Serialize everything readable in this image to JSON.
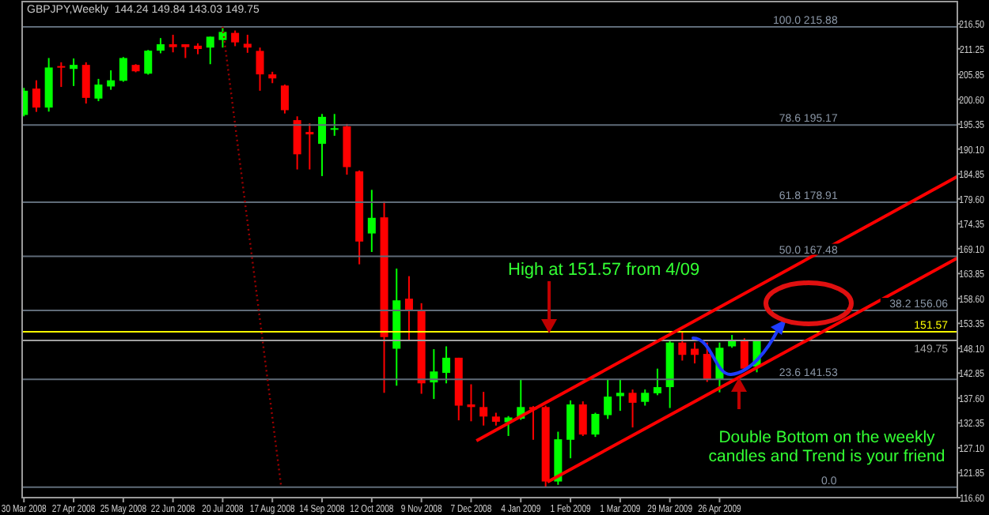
{
  "chart_data": {
    "type": "candlestick",
    "title": "GBPJPY,Weekly  144.24 149.84 143.03 149.75",
    "x": [
      "2008-03-30",
      "2008-04-06",
      "2008-04-13",
      "2008-04-20",
      "2008-04-27",
      "2008-05-04",
      "2008-05-11",
      "2008-05-18",
      "2008-05-25",
      "2008-06-01",
      "2008-06-08",
      "2008-06-15",
      "2008-06-22",
      "2008-06-29",
      "2008-07-06",
      "2008-07-13",
      "2008-07-20",
      "2008-07-27",
      "2008-08-03",
      "2008-08-10",
      "2008-08-17",
      "2008-08-24",
      "2008-08-31",
      "2008-09-07",
      "2008-09-14",
      "2008-09-21",
      "2008-09-28",
      "2008-10-05",
      "2008-10-12",
      "2008-10-19",
      "2008-10-26",
      "2008-11-02",
      "2008-11-09",
      "2008-11-16",
      "2008-11-23",
      "2008-11-30",
      "2008-12-07",
      "2008-12-14",
      "2008-12-21",
      "2008-12-28",
      "2009-01-04",
      "2009-01-11",
      "2009-01-18",
      "2009-01-25",
      "2009-02-01",
      "2009-02-08",
      "2009-02-15",
      "2009-02-22",
      "2009-03-01",
      "2009-03-08",
      "2009-03-15",
      "2009-03-22",
      "2009-03-29",
      "2009-04-05",
      "2009-04-12",
      "2009-04-19",
      "2009-04-26",
      "2009-05-03",
      "2009-05-10",
      "2009-05-17"
    ],
    "ohlc": [
      [
        197.3,
        203.0,
        197.0,
        202.4
      ],
      [
        202.85,
        204.6,
        197.95,
        198.85
      ],
      [
        198.85,
        209.3,
        198.0,
        207.3
      ],
      [
        207.6,
        208.4,
        203.2,
        207.3
      ],
      [
        207.0,
        209.2,
        203.4,
        207.85
      ],
      [
        207.85,
        208.4,
        199.7,
        200.9
      ],
      [
        200.75,
        204.9,
        200.2,
        203.7
      ],
      [
        203.3,
        206.7,
        202.6,
        204.6
      ],
      [
        204.5,
        209.5,
        204.3,
        209.3
      ],
      [
        207.85,
        208.0,
        206.3,
        206.5
      ],
      [
        206.0,
        211.0,
        205.8,
        210.85
      ],
      [
        210.85,
        213.5,
        210.3,
        212.2
      ],
      [
        212.2,
        214.2,
        210.5,
        211.6
      ],
      [
        212.2,
        212.2,
        209.3,
        211.6
      ],
      [
        211.9,
        212.4,
        210.1,
        211.2
      ],
      [
        211.5,
        213.8,
        208.0,
        213.8
      ],
      [
        213.1,
        215.88,
        211.5,
        214.8
      ],
      [
        214.6,
        215.1,
        211.8,
        212.6
      ],
      [
        212.3,
        214.2,
        210.4,
        211.5
      ],
      [
        210.8,
        211.5,
        202.4,
        205.85
      ],
      [
        205.85,
        206.4,
        204.0,
        205.0
      ],
      [
        203.5,
        203.7,
        197.6,
        198.3
      ],
      [
        196.2,
        197.0,
        185.8,
        189.0
      ],
      [
        193.7,
        195.5,
        185.8,
        193.2
      ],
      [
        191.2,
        197.5,
        184.4,
        196.9
      ],
      [
        194.2,
        197.5,
        192.9,
        194.5
      ],
      [
        194.9,
        195.4,
        184.7,
        186.3
      ],
      [
        185.4,
        185.6,
        165.8,
        170.6
      ],
      [
        172.3,
        181.5,
        168.4,
        175.6
      ],
      [
        175.7,
        179.1,
        138.7,
        150.45
      ],
      [
        148.0,
        164.9,
        140.2,
        158.2
      ],
      [
        158.55,
        163.3,
        149.9,
        156.0
      ],
      [
        156.2,
        157.6,
        138.5,
        140.7
      ],
      [
        140.9,
        147.9,
        137.4,
        143.2
      ],
      [
        142.9,
        148.5,
        140.7,
        146.1
      ],
      [
        146.1,
        146.1,
        132.9,
        136.0
      ],
      [
        136.25,
        140.5,
        132.7,
        135.7
      ],
      [
        135.7,
        138.9,
        131.8,
        133.7
      ],
      [
        133.7,
        134.5,
        131.8,
        132.6
      ],
      [
        132.5,
        133.8,
        129.6,
        133.5
      ],
      [
        133.25,
        141.6,
        133.0,
        135.7
      ],
      [
        135.7,
        135.9,
        128.8,
        135.2
      ],
      [
        135.7,
        136.0,
        118.8,
        120.0
      ],
      [
        120.0,
        130.5,
        119.3,
        128.9
      ],
      [
        128.8,
        137.1,
        124.9,
        136.25
      ],
      [
        136.25,
        136.9,
        129.6,
        129.9
      ],
      [
        129.9,
        134.5,
        129.4,
        134.25
      ],
      [
        134.0,
        141.6,
        133.2,
        137.9
      ],
      [
        138.0,
        141.6,
        134.9,
        138.7
      ],
      [
        138.7,
        139.4,
        131.4,
        136.6
      ],
      [
        136.8,
        139.4,
        136.0,
        138.7
      ],
      [
        138.6,
        143.8,
        138.2,
        139.9
      ],
      [
        139.9,
        149.9,
        135.5,
        149.3
      ],
      [
        149.3,
        151.57,
        145.5,
        146.7
      ],
      [
        148.0,
        149.3,
        144.9,
        146.7
      ],
      [
        146.9,
        149.3,
        141.0,
        141.6
      ],
      [
        141.5,
        149.3,
        138.8,
        148.2
      ],
      [
        148.5,
        150.9,
        148.2,
        149.6
      ],
      [
        149.9,
        150.2,
        143.5,
        143.8
      ],
      [
        144.24,
        149.84,
        143.03,
        149.75
      ]
    ],
    "colors": [
      "#00ff00",
      "#ff0000",
      "#00ff00",
      "#ff0000",
      "#00ff00",
      "#ff0000",
      "#00ff00",
      "#00ff00",
      "#00ff00",
      "#ff0000",
      "#00ff00",
      "#00ff00",
      "#ff0000",
      "#ff0000",
      "#ff0000",
      "#00ff00",
      "#00ff00",
      "#ff0000",
      "#ff0000",
      "#ff0000",
      "#ff0000",
      "#ff0000",
      "#ff0000",
      "#ff0000",
      "#00ff00",
      "#00ff00",
      "#ff0000",
      "#ff0000",
      "#00ff00",
      "#ff0000",
      "#00ff00",
      "#ff0000",
      "#ff0000",
      "#00ff00",
      "#00ff00",
      "#ff0000",
      "#ff0000",
      "#ff0000",
      "#ff0000",
      "#00ff00",
      "#00ff00",
      "#ff0000",
      "#ff0000",
      "#00ff00",
      "#00ff00",
      "#ff0000",
      "#00ff00",
      "#00ff00",
      "#00ff00",
      "#ff0000",
      "#00ff00",
      "#00ff00",
      "#00ff00",
      "#ff0000",
      "#ff0000",
      "#ff0000",
      "#00ff00",
      "#00ff00",
      "#ff0000",
      "#00ff00"
    ],
    "series": [
      {
        "type": "line",
        "x": [
          "2008-12-10",
          "2009-09-07"
        ],
        "values": [
          128.6,
          184.3
        ],
        "color": "#ff0000"
      },
      {
        "type": "line",
        "x": [
          "2009-01-19",
          "2009-09-07"
        ],
        "values": [
          119.9,
          167.1
        ],
        "color": "#ff0000"
      },
      {
        "type": "line",
        "x": [
          "2008-07-20",
          "2008-08-22"
        ],
        "values": [
          215.88,
          118.8
        ],
        "color": "#a00000",
        "line_style": "dotted"
      }
    ],
    "xlim": [
      "2008-03-29",
      "2009-09-07"
    ],
    "xticks": [
      {
        "value": "2008-03-30",
        "label": "30 Mar 2008"
      },
      {
        "value": "2008-04-27",
        "label": "27 Apr 2008"
      },
      {
        "value": "2008-05-25",
        "label": "25 May 2008"
      },
      {
        "value": "2008-06-22",
        "label": "22 Jun 2008"
      },
      {
        "value": "2008-07-20",
        "label": "20 Jul 2008"
      },
      {
        "value": "2008-08-17",
        "label": "17 Aug 2008"
      },
      {
        "value": "2008-09-14",
        "label": "14 Sep 2008"
      },
      {
        "value": "2008-10-12",
        "label": "12 Oct 2008"
      },
      {
        "value": "2008-11-09",
        "label": "9 Nov 2008"
      },
      {
        "value": "2008-12-07",
        "label": "7 Dec 2008"
      },
      {
        "value": "2009-01-04",
        "label": "4 Jan 2009"
      },
      {
        "value": "2009-02-01",
        "label": "1 Feb 2009"
      },
      {
        "value": "2009-03-01",
        "label": "1 Mar 2009"
      },
      {
        "value": "2009-03-29",
        "label": "29 Mar 2009"
      },
      {
        "value": "2009-04-26",
        "label": "26 Apr 2009"
      }
    ],
    "ylim": [
      116.6,
      221.2
    ],
    "yticks": [
      {
        "value": 216.5,
        "label": "216.50"
      },
      {
        "value": 211.25,
        "label": "211.25"
      },
      {
        "value": 205.85,
        "label": "205.85"
      },
      {
        "value": 200.6,
        "label": "200.60"
      },
      {
        "value": 195.35,
        "label": "195.35"
      },
      {
        "value": 190.1,
        "label": "190.10"
      },
      {
        "value": 184.85,
        "label": "184.85"
      },
      {
        "value": 179.6,
        "label": "179.60"
      },
      {
        "value": 174.35,
        "label": "174.35"
      },
      {
        "value": 169.1,
        "label": "169.10"
      },
      {
        "value": 163.85,
        "label": "163.85"
      },
      {
        "value": 158.6,
        "label": "158.60"
      },
      {
        "value": 153.35,
        "label": "153.35"
      },
      {
        "value": 148.1,
        "label": "148.10"
      },
      {
        "value": 142.85,
        "label": "142.85"
      },
      {
        "value": 137.6,
        "label": "137.60"
      },
      {
        "value": 132.35,
        "label": "132.35"
      },
      {
        "value": 127.1,
        "label": "127.10"
      },
      {
        "value": 121.85,
        "label": "121.85"
      },
      {
        "value": 116.6,
        "label": "116.60"
      }
    ],
    "ref_lines": [
      {
        "axis": "y",
        "value": 215.88,
        "label": "100.0 215.88",
        "color": "#5f6b78"
      },
      {
        "axis": "y",
        "value": 195.17,
        "label": "78.6 195.17",
        "color": "#5f6b78"
      },
      {
        "axis": "y",
        "value": 178.91,
        "label": "61.8 178.91",
        "color": "#5f6b78"
      },
      {
        "axis": "y",
        "value": 167.48,
        "label": "50.0 167.48",
        "color": "#5f6b78"
      },
      {
        "axis": "y",
        "value": 156.06,
        "label": "38.2 156.06",
        "color": "#5f6b78"
      },
      {
        "axis": "y",
        "value": 141.53,
        "label": "23.6 141.53",
        "color": "#5f6b78"
      },
      {
        "axis": "y",
        "value": 118.8,
        "color": "#5f6b78"
      },
      {
        "axis": "y",
        "value": 151.57,
        "label": "151.57",
        "color": "#ffff00"
      },
      {
        "axis": "y",
        "value": 149.75,
        "label": "149.75",
        "color": "#a0a0a0"
      }
    ],
    "annotations": [
      "High at 151.57 from 4/09",
      "Double Bottom on the weekly candles and Trend is your friend",
      {
        "text": "0.0",
        "x": "2009-07-01",
        "y": 118.8
      }
    ]
  }
}
